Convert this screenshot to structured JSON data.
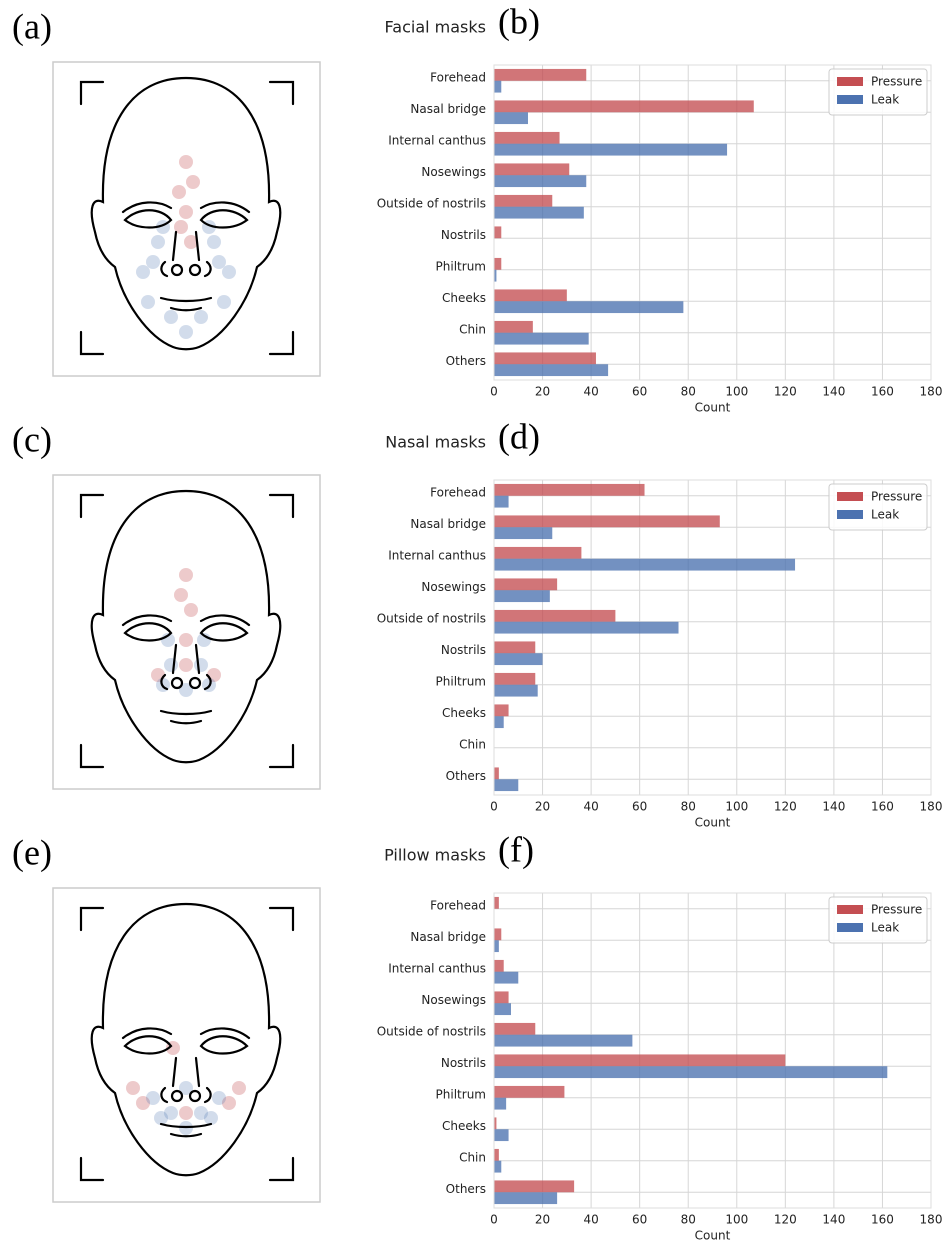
{
  "faces": [
    {
      "label": "(a)"
    },
    {
      "label": "(c)"
    },
    {
      "label": "(e)"
    }
  ],
  "chart_data": [
    {
      "type": "bar",
      "orientation": "horizontal",
      "title": "Facial masks",
      "panel_label": "(b)",
      "categories": [
        "Forehead",
        "Nasal bridge",
        "Internal canthus",
        "Nosewings",
        "Outside of nostrils",
        "Nostrils",
        "Philtrum",
        "Cheeks",
        "Chin",
        "Others"
      ],
      "series": [
        {
          "name": "Pressure",
          "color": "#c44e52",
          "values": [
            38,
            107,
            27,
            31,
            24,
            3,
            3,
            30,
            16,
            42
          ]
        },
        {
          "name": "Leak",
          "color": "#4c72b0",
          "values": [
            3,
            14,
            96,
            38,
            37,
            0,
            1,
            78,
            39,
            47
          ]
        }
      ],
      "xlabel": "Count",
      "xlim": [
        0,
        180
      ],
      "xticks": [
        0,
        20,
        40,
        60,
        80,
        100,
        120,
        140,
        160,
        180
      ],
      "grid": true,
      "legend": "upper right"
    },
    {
      "type": "bar",
      "orientation": "horizontal",
      "title": "Nasal masks",
      "panel_label": "(d)",
      "categories": [
        "Forehead",
        "Nasal bridge",
        "Internal canthus",
        "Nosewings",
        "Outside of nostrils",
        "Nostrils",
        "Philtrum",
        "Cheeks",
        "Chin",
        "Others"
      ],
      "series": [
        {
          "name": "Pressure",
          "color": "#c44e52",
          "values": [
            62,
            93,
            36,
            26,
            50,
            17,
            17,
            6,
            0,
            2
          ]
        },
        {
          "name": "Leak",
          "color": "#4c72b0",
          "values": [
            6,
            24,
            124,
            23,
            76,
            20,
            18,
            4,
            0,
            10
          ]
        }
      ],
      "xlabel": "Count",
      "xlim": [
        0,
        180
      ],
      "xticks": [
        0,
        20,
        40,
        60,
        80,
        100,
        120,
        140,
        160,
        180
      ],
      "grid": true,
      "legend": "upper right"
    },
    {
      "type": "bar",
      "orientation": "horizontal",
      "title": "Pillow masks",
      "panel_label": "(f)",
      "categories": [
        "Forehead",
        "Nasal bridge",
        "Internal canthus",
        "Nosewings",
        "Outside of nostrils",
        "Nostrils",
        "Philtrum",
        "Cheeks",
        "Chin",
        "Others"
      ],
      "series": [
        {
          "name": "Pressure",
          "color": "#c44e52",
          "values": [
            2,
            3,
            4,
            6,
            17,
            120,
            29,
            1,
            2,
            33
          ]
        },
        {
          "name": "Leak",
          "color": "#4c72b0",
          "values": [
            0,
            2,
            10,
            7,
            57,
            162,
            5,
            6,
            3,
            26
          ]
        }
      ],
      "xlabel": "Count",
      "xlim": [
        0,
        180
      ],
      "xticks": [
        0,
        20,
        40,
        60,
        80,
        100,
        120,
        140,
        160,
        180
      ],
      "grid": true,
      "legend": "upper right"
    }
  ]
}
